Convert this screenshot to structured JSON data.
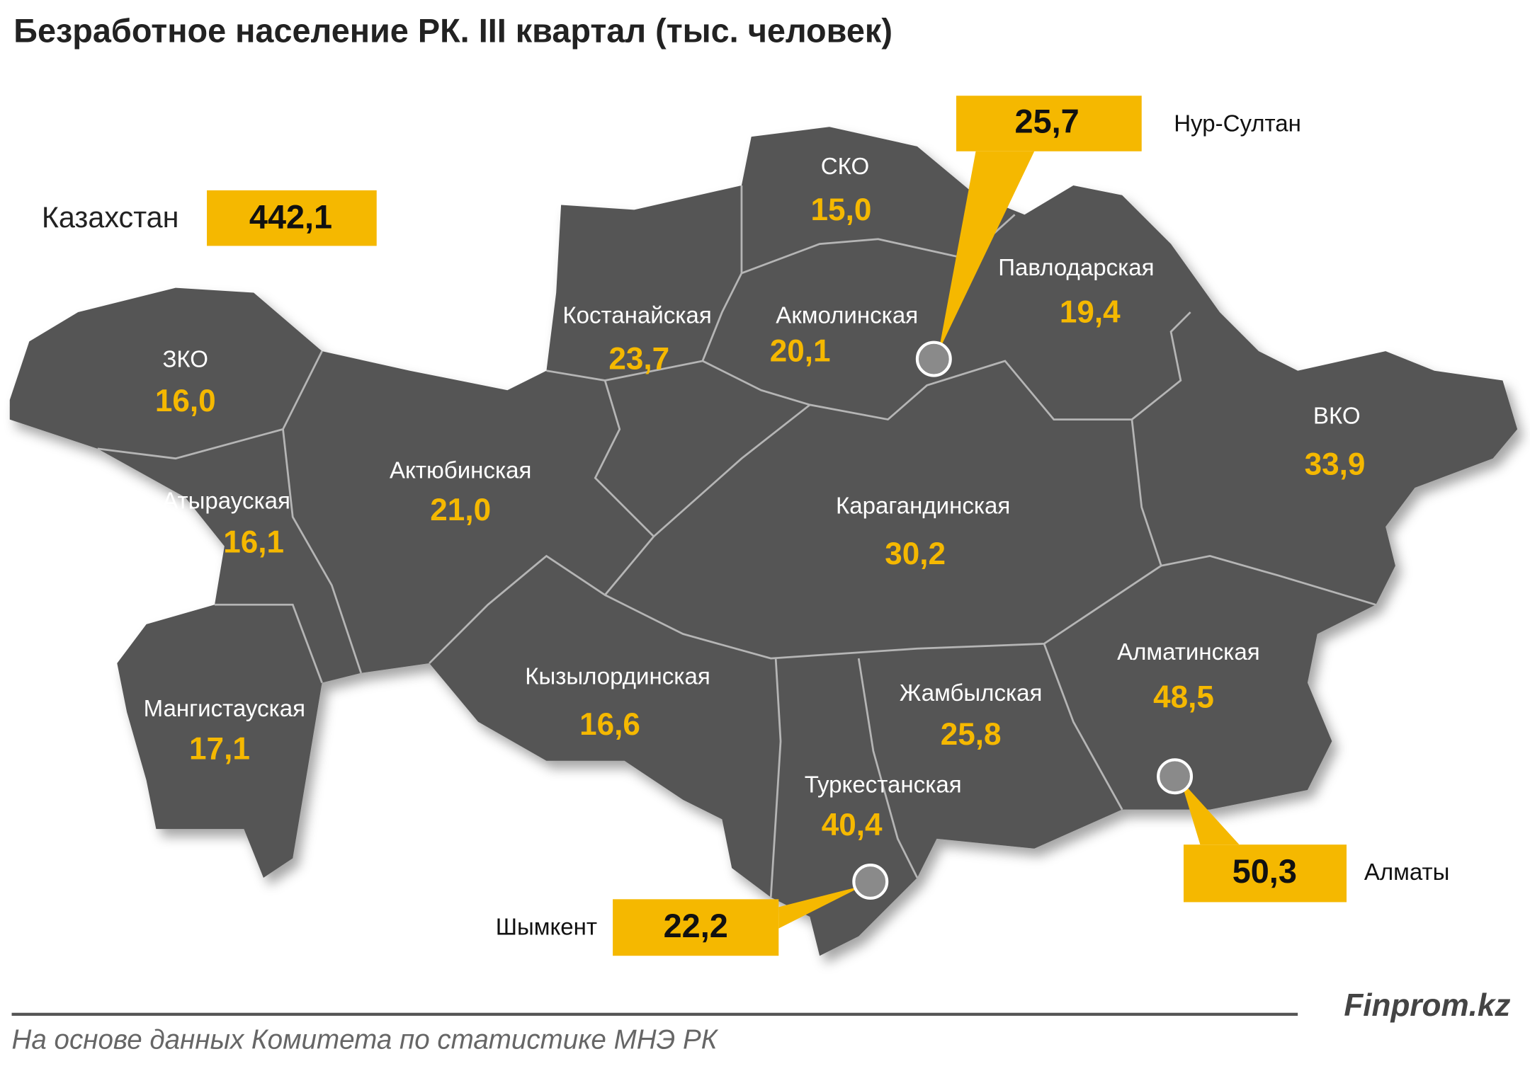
{
  "header": {
    "title": "Безработное население РК. III квартал (тыс.  человек)"
  },
  "total": {
    "label": "Казахстан",
    "value": "442,1"
  },
  "regions": [
    {
      "name": "ЗКО",
      "value": "16,0"
    },
    {
      "name": "Атырауская",
      "value": "16,1"
    },
    {
      "name": "Мангистауская",
      "value": "17,1"
    },
    {
      "name": "Актюбинская",
      "value": "21,0"
    },
    {
      "name": "Костанайская",
      "value": "23,7"
    },
    {
      "name": "СКО",
      "value": "15,0"
    },
    {
      "name": "Акмолинская",
      "value": "20,1"
    },
    {
      "name": "Павлодарская",
      "value": "19,4"
    },
    {
      "name": "ВКО",
      "value": "33,9"
    },
    {
      "name": "Карагандинская",
      "value": "30,2"
    },
    {
      "name": "Кызылординская",
      "value": "16,6"
    },
    {
      "name": "Жамбылская",
      "value": "25,8"
    },
    {
      "name": "Алматинская",
      "value": "48,5"
    },
    {
      "name": "Туркестанская",
      "value": "40,4"
    }
  ],
  "cities": [
    {
      "name": "Нур-Султан",
      "value": "25,7"
    },
    {
      "name": "Алматы",
      "value": "50,3"
    },
    {
      "name": "Шымкент",
      "value": "22,2"
    }
  ],
  "footer": {
    "brand": "Finprom.kz",
    "source": "На основе данных  Комитета по статистике МНЭ РК"
  }
}
